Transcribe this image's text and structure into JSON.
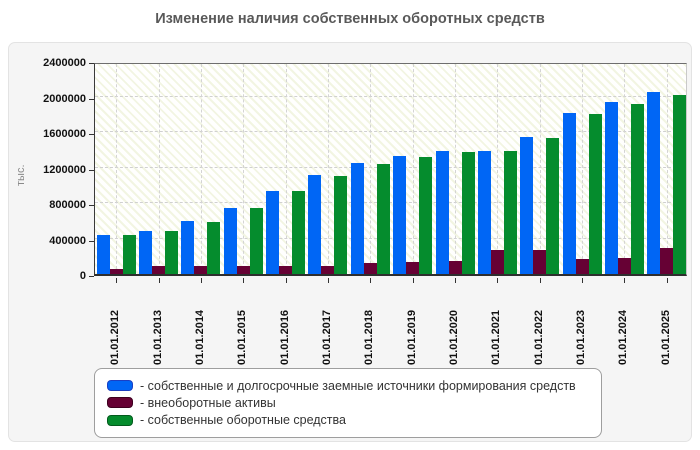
{
  "title": "Изменение наличия собственных оборотных средств",
  "y_axis": {
    "label": "тыс.",
    "tick_labels": [
      "0",
      "400000",
      "800000",
      "1200000",
      "1600000",
      "2000000",
      "2400000"
    ]
  },
  "chart_data": {
    "type": "bar",
    "title": "Изменение наличия собственных оборотных средств",
    "xlabel": "",
    "ylabel": "тыс.",
    "ylim": [
      0,
      2400000
    ],
    "ytick_step": 400000,
    "grid": true,
    "legend_position": "bottom",
    "categories": [
      "01.01.2012",
      "01.01.2013",
      "01.01.2014",
      "01.01.2015",
      "01.01.2016",
      "01.01.2017",
      "01.01.2018",
      "01.01.2019",
      "01.01.2020",
      "01.01.2021",
      "01.01.2022",
      "01.01.2023",
      "01.01.2024",
      "01.01.2025"
    ],
    "series": [
      {
        "name": "собственные и долгосрочные заемные источники формирования средств",
        "color": "#0066f5",
        "border_color": "#1a3fc4",
        "values": [
          440000,
          490000,
          595000,
          745000,
          940000,
          1110000,
          1250000,
          1330000,
          1390000,
          1390000,
          1545000,
          1810000,
          1935000,
          2050000
        ]
      },
      {
        "name": "внеоборотные активы",
        "color": "#660134",
        "border_color": "#3d001f",
        "values": [
          60000,
          90000,
          90000,
          90000,
          90000,
          95000,
          125000,
          130000,
          145000,
          270000,
          265000,
          165000,
          185000,
          295000
        ]
      },
      {
        "name": "собственные оборотные средства",
        "color": "#058c2d",
        "border_color": "#035b1d",
        "values": [
          435000,
          485000,
          585000,
          740000,
          930000,
          1100000,
          1240000,
          1320000,
          1380000,
          1385000,
          1535000,
          1800000,
          1920000,
          2015000
        ]
      }
    ]
  },
  "legend": {
    "items": [
      {
        "label": "- собственные и долгосрочные заемные источники формирования средств",
        "color": "#0066f5",
        "border_color": "#1a3fc4"
      },
      {
        "label": "- внеоборотные активы",
        "color": "#660134",
        "border_color": "#3d001f"
      },
      {
        "label": "- собственные оборотные средства",
        "color": "#058c2d",
        "border_color": "#035b1d"
      }
    ]
  }
}
